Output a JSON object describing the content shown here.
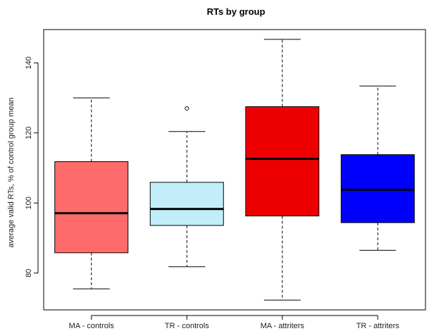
{
  "chart_data": {
    "type": "boxplot",
    "title": "RTs by group",
    "xlabel": "",
    "ylabel": "average valid RTs, % of control group mean",
    "ylim": [
      69.5,
      149.5
    ],
    "yticks": [
      80,
      100,
      120,
      140
    ],
    "grid": false,
    "categories": [
      "MA - controls",
      "TR - controls",
      "MA - attriters",
      "TR - attriters"
    ],
    "boxes": [
      {
        "category": "MA - controls",
        "min": 75.5,
        "q1": 85.8,
        "median": 97.1,
        "q3": 111.8,
        "max": 130.0,
        "outliers": [],
        "color": "#ff6b6b"
      },
      {
        "category": "TR - controls",
        "min": 81.8,
        "q1": 93.6,
        "median": 98.3,
        "q3": 105.9,
        "max": 120.4,
        "outliers": [
          127.0
        ],
        "color": "#c2eefc"
      },
      {
        "category": "MA - attriters",
        "min": 72.3,
        "q1": 96.3,
        "median": 112.6,
        "q3": 127.5,
        "max": 146.7,
        "outliers": [],
        "color": "#ee0000"
      },
      {
        "category": "TR - attriters",
        "min": 86.5,
        "q1": 94.4,
        "median": 103.8,
        "q3": 113.8,
        "max": 133.4,
        "outliers": [],
        "color": "#0000ff"
      }
    ]
  }
}
